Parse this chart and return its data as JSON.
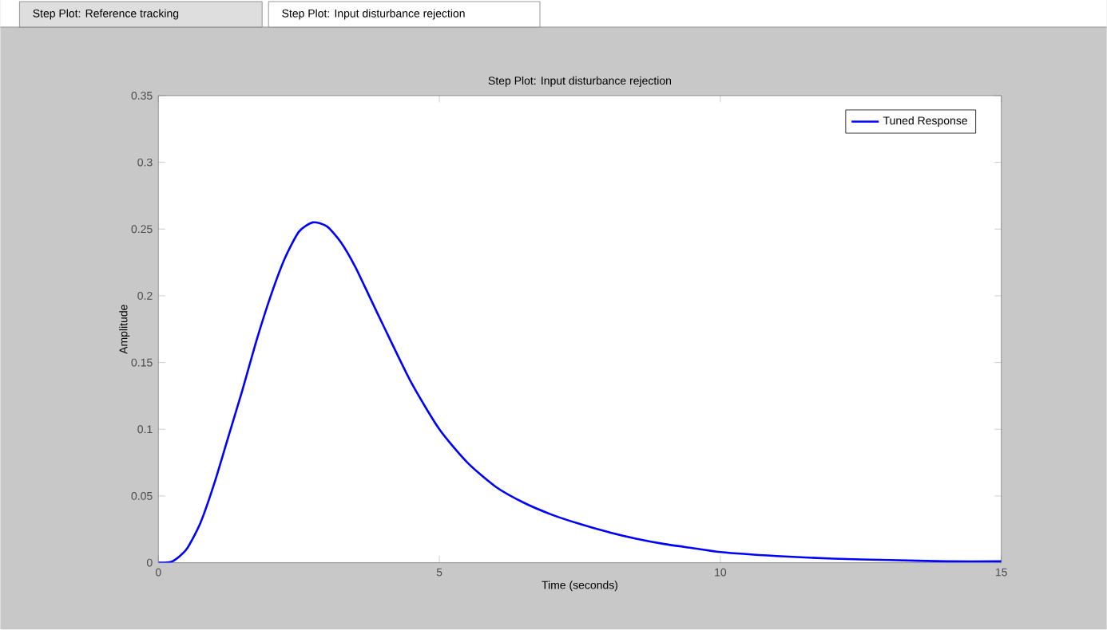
{
  "chart_data": {
    "type": "line",
    "title": "Step Plot: Input disturbance rejection",
    "xlabel": "Time (seconds)",
    "ylabel": "Amplitude",
    "annotations": [
      "Step Plot: Reference tracking",
      "Step Plot: Input disturbance rejection"
    ],
    "x": [
      0,
      0.25,
      0.5,
      0.75,
      1.0,
      1.25,
      1.5,
      1.75,
      2.0,
      2.25,
      2.5,
      2.75,
      3.0,
      3.25,
      3.5,
      3.75,
      4.0,
      4.5,
      5,
      5.5,
      6,
      6.5,
      7,
      7.5,
      8,
      8.5,
      9,
      9.5,
      10,
      11,
      12,
      13,
      14,
      15
    ],
    "series": [
      {
        "name": "Tuned Response",
        "color": "#0000ff",
        "values": [
          0,
          0.001,
          0.01,
          0.03,
          0.06,
          0.095,
          0.13,
          0.167,
          0.2,
          0.228,
          0.248,
          0.255,
          0.252,
          0.24,
          0.222,
          0.2,
          0.178,
          0.135,
          0.1,
          0.075,
          0.057,
          0.045,
          0.036,
          0.029,
          0.023,
          0.018,
          0.014,
          0.011,
          0.008,
          0.005,
          0.003,
          0.002,
          0.001,
          0.001
        ]
      }
    ],
    "xlim": [
      0,
      15
    ],
    "ylim": [
      0,
      0.35
    ],
    "xticks": [
      0,
      5,
      10,
      15
    ],
    "yticks": [
      0,
      0.05,
      0.1,
      0.15,
      0.2,
      0.25,
      0.3,
      0.35
    ],
    "legend": "top right",
    "line_style": "solid",
    "marker": "none",
    "grid": false
  }
}
